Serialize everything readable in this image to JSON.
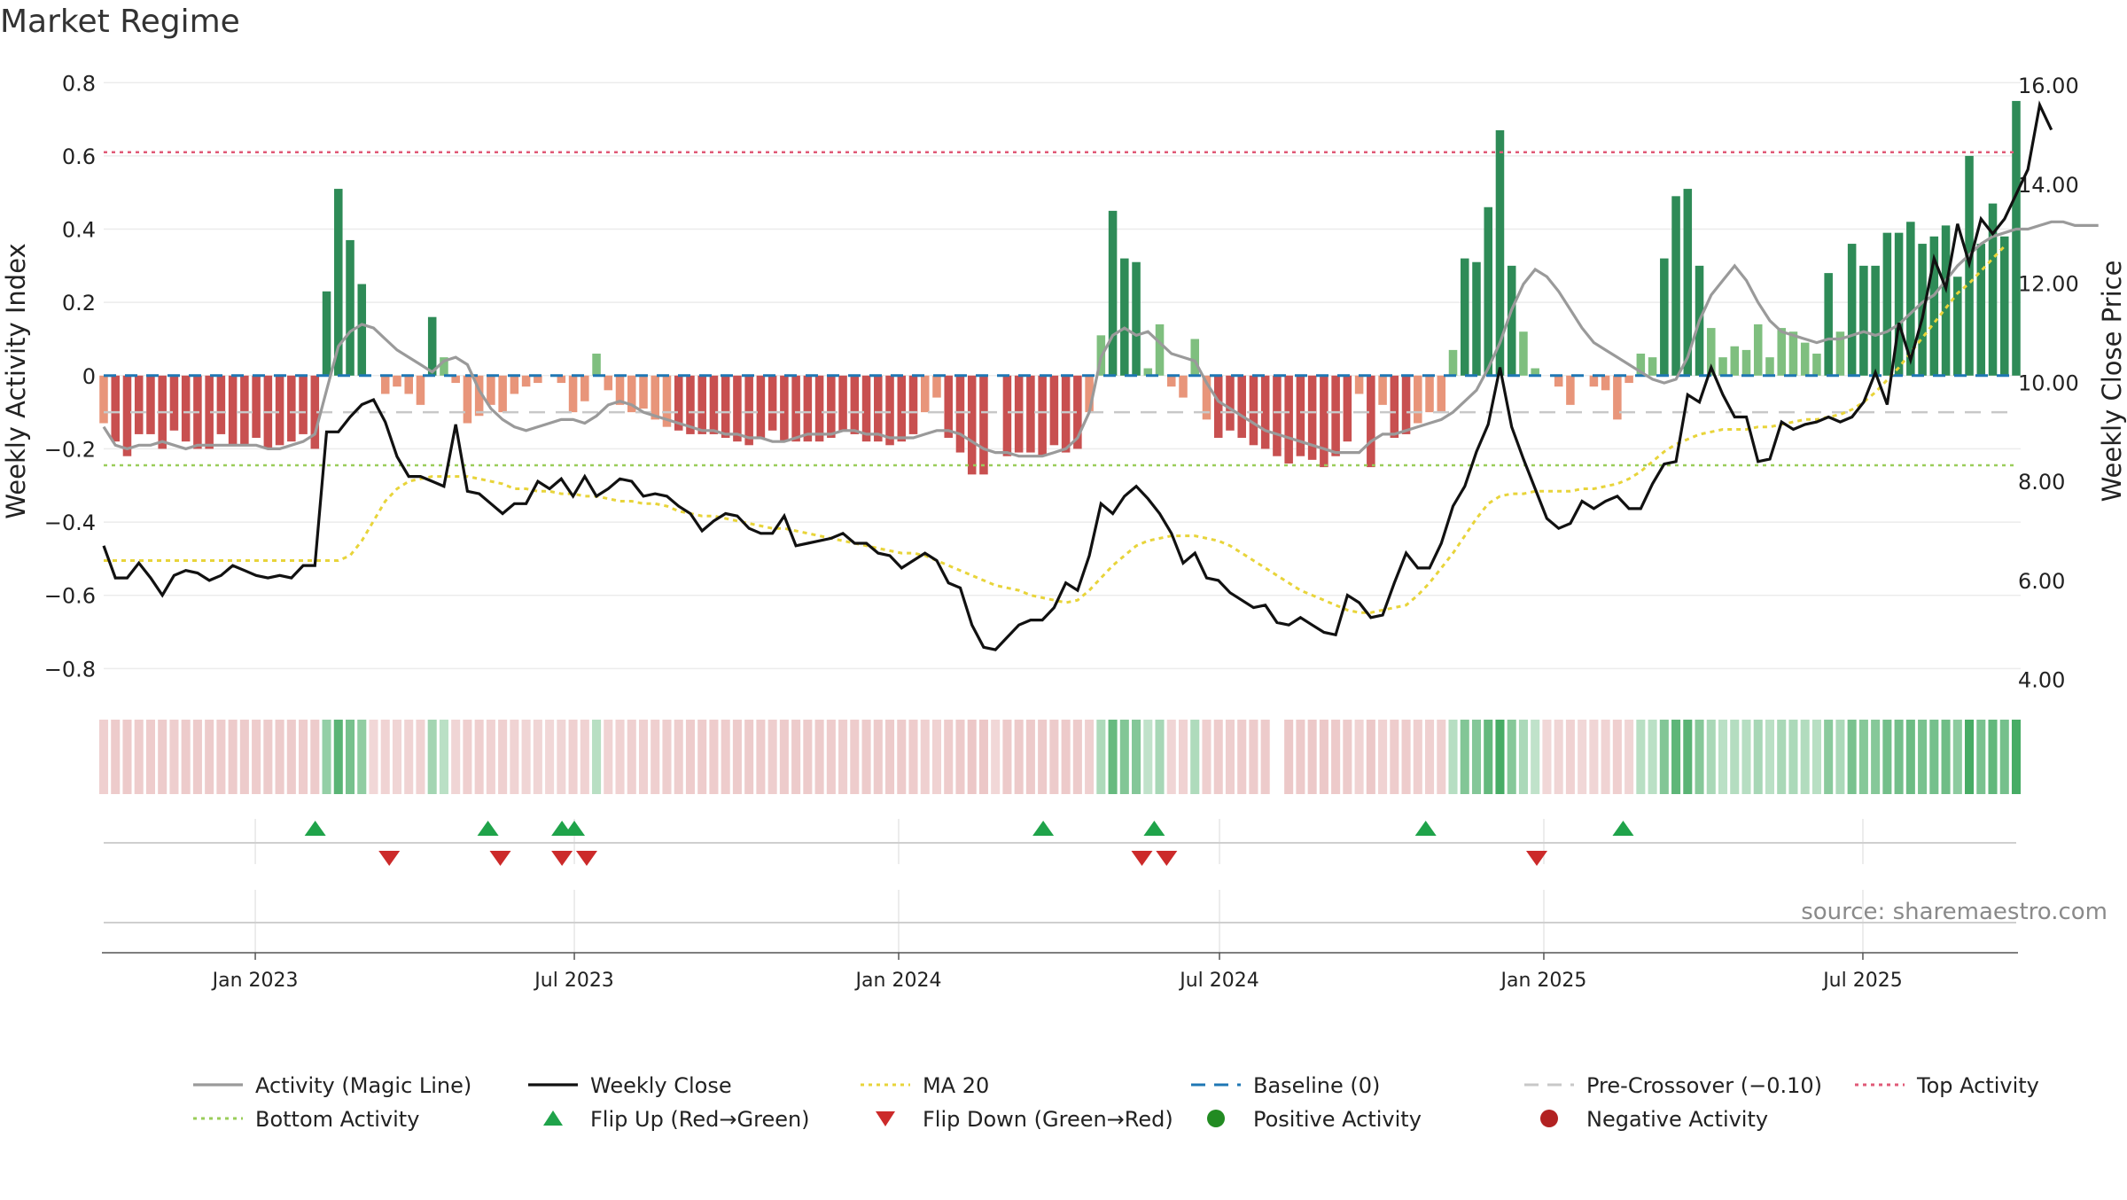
{
  "page": {
    "title": "Market Regime",
    "source": "source: sharemaestro.com"
  },
  "colors": {
    "magic_line": "#9a9a9a",
    "close": "#111111",
    "ma20": "#e8d43a",
    "baseline": "#1f77b4",
    "pre_crossover": "#c8c8c8",
    "top_activity": "#e05a77",
    "bottom_activity": "#9acd5a",
    "flip_up": "#1fa34a",
    "flip_down": "#cc2a2a",
    "pos_strong": "#2e8b57",
    "pos_weak": "#7fbf7f",
    "neg_strong": "#c85050",
    "neg_weak": "#e8957a"
  },
  "chart_data": {
    "type": "bar",
    "title": "Market Regime",
    "ylabel": "Weekly Activity Index",
    "y2label": "Weekly Close Price",
    "ylim": [
      -0.85,
      0.82
    ],
    "y2lim": [
      3.85,
      16.2
    ],
    "yticks": [
      "0.8",
      "0.6",
      "0.4",
      "0.2",
      "0",
      "−0.2",
      "−0.4",
      "−0.6",
      "−0.8"
    ],
    "y2ticks": [
      "16.00",
      "14.00",
      "12.00",
      "10.00",
      "8.00",
      "6.00",
      "4.00"
    ],
    "xticks": [
      "Jan 2023",
      "Jul 2023",
      "Jan 2024",
      "Jul 2024",
      "Jan 2025",
      "Jul 2025"
    ],
    "x_start": "2022-10-07",
    "x_end": "2025-09-26",
    "tick_dates": [
      "2023-01-01",
      "2023-07-01",
      "2024-01-01",
      "2024-07-01",
      "2025-01-01",
      "2025-07-01"
    ],
    "reference_lines": {
      "baseline": 0,
      "pre_crossover": -0.1,
      "top_activity": 0.61,
      "bottom_activity": -0.245
    },
    "series": [
      {
        "name": "Activity (Magic Line)",
        "values": [
          -0.14,
          -0.19,
          -0.2,
          -0.19,
          -0.19,
          -0.18,
          -0.19,
          -0.2,
          -0.19,
          -0.19,
          -0.19,
          -0.19,
          -0.19,
          -0.19,
          -0.2,
          -0.2,
          -0.19,
          -0.18,
          -0.16,
          -0.04,
          0.08,
          0.12,
          0.14,
          0.13,
          0.1,
          0.07,
          0.05,
          0.03,
          0.01,
          0.04,
          0.05,
          0.03,
          -0.04,
          -0.09,
          -0.12,
          -0.14,
          -0.15,
          -0.14,
          -0.13,
          -0.12,
          -0.12,
          -0.13,
          -0.11,
          -0.08,
          -0.07,
          -0.08,
          -0.1,
          -0.11,
          -0.12,
          -0.13,
          -0.14,
          -0.15,
          -0.15,
          -0.16,
          -0.16,
          -0.17,
          -0.17,
          -0.18,
          -0.18,
          -0.17,
          -0.16,
          -0.16,
          -0.16,
          -0.15,
          -0.15,
          -0.16,
          -0.16,
          -0.17,
          -0.17,
          -0.17,
          -0.16,
          -0.15,
          -0.15,
          -0.16,
          -0.18,
          -0.2,
          -0.21,
          -0.21,
          -0.22,
          -0.22,
          -0.22,
          -0.21,
          -0.2,
          -0.17,
          -0.1,
          0.05,
          0.11,
          0.13,
          0.11,
          0.12,
          0.09,
          0.06,
          0.05,
          0.04,
          -0.02,
          -0.07,
          -0.09,
          -0.11,
          -0.13,
          -0.15,
          -0.16,
          -0.17,
          -0.18,
          -0.19,
          -0.2,
          -0.21,
          -0.21,
          -0.21,
          -0.18,
          -0.16,
          -0.16,
          -0.15,
          -0.14,
          -0.13,
          -0.12,
          -0.1,
          -0.07,
          -0.04,
          0.02,
          0.09,
          0.18,
          0.25,
          0.29,
          0.27,
          0.23,
          0.18,
          0.13,
          0.09,
          0.07,
          0.05,
          0.03,
          0.01,
          -0.01,
          -0.02,
          -0.01,
          0.05,
          0.15,
          0.22,
          0.26,
          0.3,
          0.26,
          0.2,
          0.15,
          0.12,
          0.11,
          0.1,
          0.09,
          0.1,
          0.1,
          0.11,
          0.12,
          0.11,
          0.12,
          0.14,
          0.17,
          0.2,
          0.22,
          0.26,
          0.3,
          0.33,
          0.36,
          0.38,
          0.39,
          0.4,
          0.4,
          0.41,
          0.42,
          0.42,
          0.41,
          0.41,
          0.41
        ]
      },
      {
        "name": "Weekly Close",
        "values": [
          6.7,
          6.05,
          6.05,
          6.35,
          6.05,
          5.7,
          6.1,
          6.2,
          6.15,
          6.0,
          6.1,
          6.3,
          6.2,
          6.1,
          6.05,
          6.1,
          6.05,
          6.3,
          6.3,
          9.0,
          9.0,
          9.3,
          9.55,
          9.65,
          9.2,
          8.5,
          8.1,
          8.1,
          8.0,
          7.9,
          9.15,
          7.8,
          7.75,
          7.55,
          7.35,
          7.55,
          7.55,
          8.0,
          7.85,
          8.05,
          7.7,
          8.1,
          7.7,
          7.85,
          8.05,
          8.0,
          7.7,
          7.75,
          7.7,
          7.5,
          7.35,
          7.0,
          7.2,
          7.35,
          7.3,
          7.05,
          6.95,
          6.95,
          7.3,
          6.7,
          6.75,
          6.8,
          6.85,
          6.95,
          6.75,
          6.75,
          6.55,
          6.5,
          6.25,
          6.4,
          6.55,
          6.4,
          5.95,
          5.85,
          5.1,
          4.65,
          4.6,
          4.85,
          5.1,
          5.2,
          5.2,
          5.45,
          5.95,
          5.8,
          6.5,
          7.55,
          7.35,
          7.7,
          7.9,
          7.65,
          7.35,
          6.95,
          6.35,
          6.55,
          6.05,
          6.0,
          5.75,
          5.6,
          5.45,
          5.5,
          5.15,
          5.1,
          5.25,
          5.1,
          4.95,
          4.9,
          5.7,
          5.55,
          5.25,
          5.3,
          5.95,
          6.55,
          6.25,
          6.25,
          6.75,
          7.5,
          7.9,
          8.6,
          9.15,
          10.3,
          9.1,
          8.45,
          7.85,
          7.25,
          7.05,
          7.15,
          7.6,
          7.45,
          7.6,
          7.7,
          7.45,
          7.45,
          7.95,
          8.35,
          8.4,
          9.75,
          9.6,
          10.3,
          9.75,
          9.3,
          9.3,
          8.4,
          8.45,
          9.2,
          9.05,
          9.15,
          9.2,
          9.3,
          9.2,
          9.3,
          9.6,
          10.2,
          9.55,
          11.2,
          10.45,
          11.3,
          12.5,
          11.9,
          13.2,
          12.4,
          13.3,
          13.0,
          13.3,
          13.8,
          14.3,
          15.6,
          15.1
        ]
      },
      {
        "name": "MA 20",
        "values": [
          6.4,
          6.4,
          6.4,
          6.4,
          6.4,
          6.4,
          6.4,
          6.4,
          6.4,
          6.4,
          6.4,
          6.4,
          6.4,
          6.4,
          6.4,
          6.4,
          6.4,
          6.4,
          6.4,
          6.4,
          6.4,
          6.5,
          6.8,
          7.2,
          7.6,
          7.85,
          8.0,
          8.05,
          8.1,
          8.1,
          8.1,
          8.1,
          8.05,
          8.0,
          7.95,
          7.85,
          7.85,
          7.8,
          7.8,
          7.75,
          7.75,
          7.7,
          7.7,
          7.65,
          7.6,
          7.6,
          7.55,
          7.55,
          7.5,
          7.4,
          7.35,
          7.3,
          7.3,
          7.25,
          7.2,
          7.15,
          7.1,
          7.05,
          7.05,
          7.0,
          6.95,
          6.9,
          6.85,
          6.8,
          6.75,
          6.7,
          6.65,
          6.6,
          6.55,
          6.55,
          6.5,
          6.4,
          6.3,
          6.2,
          6.1,
          6.0,
          5.9,
          5.85,
          5.8,
          5.7,
          5.65,
          5.6,
          5.55,
          5.6,
          5.8,
          6.05,
          6.3,
          6.5,
          6.7,
          6.8,
          6.85,
          6.9,
          6.9,
          6.9,
          6.85,
          6.8,
          6.7,
          6.55,
          6.4,
          6.25,
          6.1,
          5.95,
          5.8,
          5.7,
          5.6,
          5.5,
          5.4,
          5.35,
          5.35,
          5.4,
          5.45,
          5.5,
          5.7,
          5.95,
          6.25,
          6.55,
          6.9,
          7.25,
          7.55,
          7.7,
          7.75,
          7.75,
          7.8,
          7.8,
          7.8,
          7.8,
          7.85,
          7.85,
          7.9,
          7.95,
          8.05,
          8.2,
          8.4,
          8.6,
          8.75,
          8.85,
          8.95,
          9.0,
          9.05,
          9.05,
          9.05,
          9.1,
          9.1,
          9.15,
          9.2,
          9.25,
          9.25,
          9.3,
          9.35,
          9.45,
          9.6,
          9.8,
          10.05,
          10.3,
          10.6,
          10.9,
          11.2,
          11.5,
          11.8,
          12.0,
          12.25,
          12.5,
          12.75
        ]
      },
      {
        "name": "Weekly Activity Index",
        "values": [
          -0.13,
          -0.18,
          -0.22,
          -0.16,
          -0.16,
          -0.2,
          -0.15,
          -0.18,
          -0.2,
          -0.2,
          -0.16,
          -0.19,
          -0.19,
          -0.17,
          -0.2,
          -0.19,
          -0.18,
          -0.16,
          -0.2,
          0.23,
          0.51,
          0.37,
          0.25,
          0.0,
          -0.05,
          -0.03,
          -0.05,
          -0.08,
          0.16,
          0.05,
          -0.02,
          -0.13,
          -0.11,
          -0.08,
          -0.1,
          -0.05,
          -0.03,
          -0.02,
          0.0,
          -0.02,
          -0.1,
          -0.07,
          0.06,
          -0.04,
          -0.08,
          -0.1,
          -0.09,
          -0.12,
          -0.14,
          -0.15,
          -0.16,
          -0.16,
          -0.16,
          -0.17,
          -0.18,
          -0.19,
          -0.17,
          -0.15,
          -0.18,
          -0.18,
          -0.18,
          -0.18,
          -0.17,
          -0.15,
          -0.16,
          -0.18,
          -0.18,
          -0.19,
          -0.18,
          -0.16,
          -0.1,
          -0.06,
          -0.17,
          -0.21,
          -0.27,
          -0.27,
          0.0,
          -0.22,
          -0.21,
          -0.21,
          -0.22,
          -0.19,
          -0.21,
          -0.2,
          -0.1,
          0.11,
          0.45,
          0.32,
          0.31,
          0.02,
          0.14,
          -0.03,
          -0.06,
          0.1,
          -0.12,
          -0.17,
          -0.15,
          -0.17,
          -0.19,
          -0.2,
          -0.22,
          -0.24,
          -0.22,
          -0.23,
          -0.25,
          -0.22,
          -0.18,
          -0.05,
          -0.25,
          -0.08,
          -0.17,
          -0.16,
          -0.13,
          -0.1,
          -0.1,
          0.07,
          0.32,
          0.31,
          0.46,
          0.67,
          0.3,
          0.12,
          0.02,
          0.0,
          -0.03,
          -0.08,
          0.0,
          -0.03,
          -0.04,
          -0.12,
          -0.02,
          0.06,
          0.05,
          0.32,
          0.49,
          0.51,
          0.3,
          0.13,
          0.05,
          0.08,
          0.07,
          0.14,
          0.05,
          0.13,
          0.12,
          0.09,
          0.06,
          0.28,
          0.12,
          0.36,
          0.3,
          0.3,
          0.39,
          0.39,
          0.42,
          0.36,
          0.38,
          0.41,
          0.27,
          0.6,
          0.36,
          0.47,
          0.38,
          0.75
        ]
      }
    ],
    "regime_strength_row": {
      "gap_index": 100,
      "note": "sign/strength per week drawn as colored cells"
    },
    "flip_up_dates": [
      "2023-02-04",
      "2023-05-13",
      "2023-06-24",
      "2023-07-01",
      "2024-03-23",
      "2024-05-25",
      "2024-10-26",
      "2025-02-15"
    ],
    "flip_down_dates": [
      "2023-03-18",
      "2023-05-20",
      "2023-06-24",
      "2023-07-08",
      "2024-05-18",
      "2024-06-01",
      "2024-12-28"
    ]
  },
  "legend": [
    {
      "label": "Activity (Magic Line)",
      "kind": "line",
      "color": "#9a9a9a"
    },
    {
      "label": "Weekly Close",
      "kind": "line",
      "color": "#111111"
    },
    {
      "label": "MA 20",
      "kind": "dotted",
      "color": "#e8d43a"
    },
    {
      "label": "Baseline (0)",
      "kind": "dashed",
      "color": "#1f77b4"
    },
    {
      "label": "Pre-Crossover (−0.10)",
      "kind": "dashed",
      "color": "#c8c8c8"
    },
    {
      "label": "Top Activity",
      "kind": "dotted",
      "color": "#e05a77"
    },
    {
      "label": "Bottom Activity",
      "kind": "dotted",
      "color": "#9acd5a"
    },
    {
      "label": "Flip Up (Red→Green)",
      "kind": "tri-up",
      "color": "#1fa34a"
    },
    {
      "label": "Flip Down (Green→Red)",
      "kind": "tri-down",
      "color": "#cc2a2a"
    },
    {
      "label": "Positive Activity",
      "kind": "dot",
      "color": "#228b22"
    },
    {
      "label": "Negative Activity",
      "kind": "dot",
      "color": "#b22222"
    }
  ]
}
